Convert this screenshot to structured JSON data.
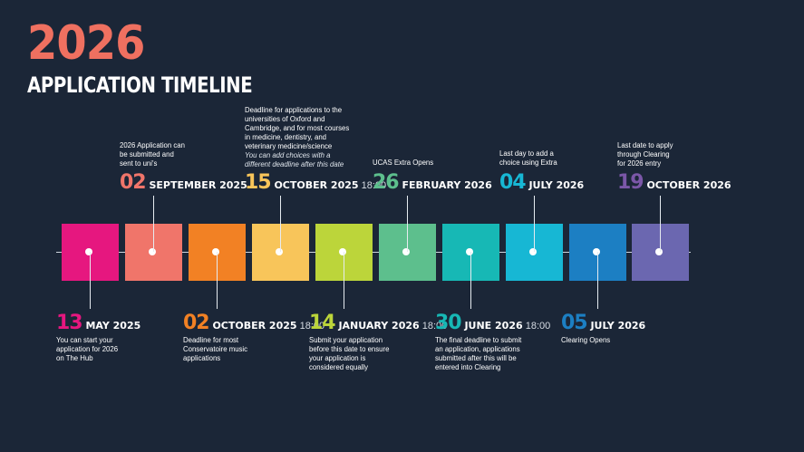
{
  "title": {
    "year": "2026",
    "subtitle": "APPLICATION TIMELINE",
    "year_color": "#ef7060"
  },
  "squares": [
    {
      "color": "#e6177f"
    },
    {
      "color": "#f0756a"
    },
    {
      "color": "#f28124"
    },
    {
      "color": "#f8c55a"
    },
    {
      "color": "#bcd53a"
    },
    {
      "color": "#5dbf8d"
    },
    {
      "color": "#17b8b5"
    },
    {
      "color": "#17b7d4"
    },
    {
      "color": "#1c7fc3"
    },
    {
      "color": "#6b67b0"
    }
  ],
  "top_events": [
    {
      "day": "02",
      "month": "SEPTEMBER 2025",
      "time": "",
      "color": "#f0756a",
      "lines": [
        "2026 Application can",
        "be submitted and",
        "sent to uni's"
      ],
      "italic": []
    },
    {
      "day": "15",
      "month": "OCTOBER 2025",
      "time": "18:00",
      "color": "#f8c55a",
      "lines": [
        "Deadline for applications to the",
        "universities of Oxford and",
        "Cambridge, and for most courses",
        "in medicine, dentistry, and",
        "veterinary medicine/science"
      ],
      "italic": [
        "You can add choices with a",
        "different deadline after this date"
      ]
    },
    {
      "day": "26",
      "month": "FEBRUARY 2026",
      "time": "",
      "color": "#5dbf8d",
      "lines": [
        "UCAS Extra Opens"
      ],
      "italic": []
    },
    {
      "day": "04",
      "month": "JULY 2026",
      "time": "",
      "color": "#17b7d4",
      "lines": [
        "Last day to add a",
        "choice using Extra"
      ],
      "italic": []
    },
    {
      "day": "19",
      "month": "OCTOBER 2026",
      "time": "",
      "color": "#7b57a8",
      "lines": [
        "Last date to apply",
        "through Clearing",
        "for 2026 entry"
      ],
      "italic": []
    }
  ],
  "bottom_events": [
    {
      "day": "13",
      "month": "MAY 2025",
      "time": "",
      "color": "#e6177f",
      "lines": [
        "You can start your",
        "application for 2026",
        "on The Hub"
      ]
    },
    {
      "day": "02",
      "month": "OCTOBER 2025",
      "time": "18:00",
      "color": "#f28124",
      "lines": [
        "Deadline for most",
        "Conservatoire music",
        "applications"
      ]
    },
    {
      "day": "14",
      "month": "JANUARY 2026",
      "time": "18:00",
      "color": "#bcd53a",
      "lines": [
        "Submit your application",
        "before this date to ensure",
        "your application is",
        "considered equally"
      ]
    },
    {
      "day": "30",
      "month": "JUNE 2026",
      "time": "18:00",
      "color": "#17b8b5",
      "lines": [
        "The final deadline to submit",
        "an application, applications",
        "submitted after this will be",
        "entered into Clearing"
      ]
    },
    {
      "day": "05",
      "month": "JULY 2026",
      "time": "",
      "color": "#1c7fc3",
      "lines": [
        "Clearing Opens"
      ]
    }
  ]
}
